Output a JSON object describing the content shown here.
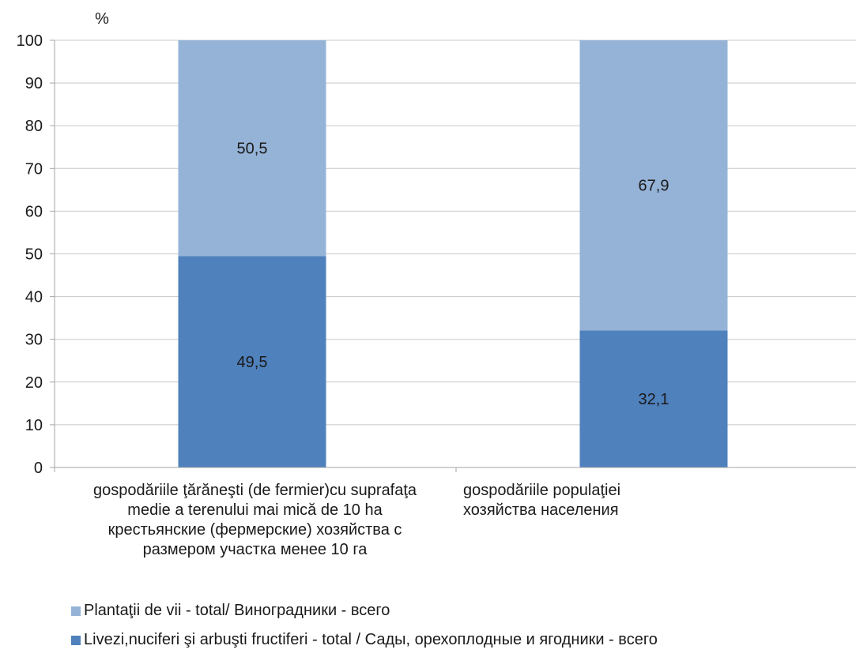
{
  "chart_data": {
    "type": "bar",
    "stacked": true,
    "yunit": "%",
    "ylim": [
      0,
      100
    ],
    "yticks": [
      0,
      10,
      20,
      30,
      40,
      50,
      60,
      70,
      80,
      90,
      100
    ],
    "grid": true,
    "legend_position": "bottom",
    "categories": [
      [
        "gospodăriile  ţărăneşti (de fermier)cu suprafaţa",
        "medie a terenului mai mică de 10 ha",
        "крестьянские (фермерские) хозяйства с",
        "размером участка менее 10 га"
      ],
      [
        "gospodăriile populaţiei",
        "хозяйства населения"
      ]
    ],
    "series": [
      {
        "name": "Livezi,nuciferi şi arbuşti fructiferi - total / Сады, орехоплодные и ягодники - всего",
        "values": [
          49.5,
          32.1
        ],
        "labels": [
          "49,5",
          "32,1"
        ],
        "color": "#4f81bd"
      },
      {
        "name": "Plantaţii de vii - total/ Виноградники - всего",
        "values": [
          50.5,
          67.9
        ],
        "labels": [
          "50,5",
          "67,9"
        ],
        "color": "#95b3d7"
      }
    ],
    "legend_order": [
      1,
      0
    ],
    "gridline_color": "#c8c8c8"
  }
}
